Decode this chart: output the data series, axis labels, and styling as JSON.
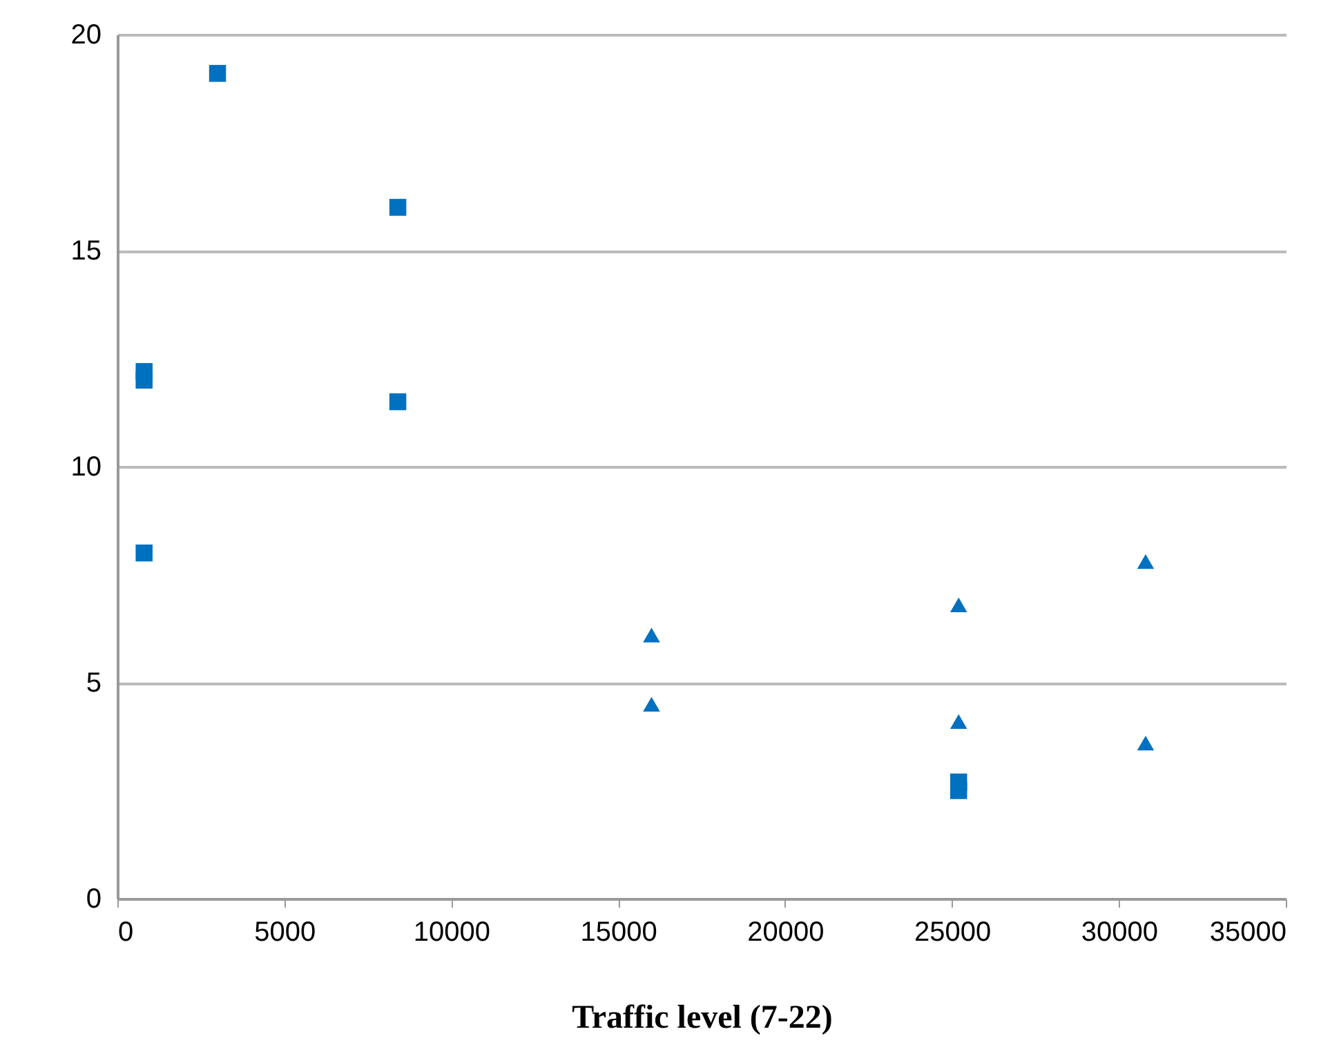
{
  "chart_data": {
    "type": "scatter",
    "xlabel": "Traffic level (7-22)",
    "xlim": [
      0,
      35000
    ],
    "xticks": [
      0,
      5000,
      10000,
      15000,
      20000,
      25000,
      30000,
      35000
    ],
    "ylim": [
      0,
      20
    ],
    "yticks": [
      0,
      5,
      10,
      15,
      20
    ],
    "grid": "y",
    "legend": false,
    "series": [
      {
        "color": "#0070c0",
        "marker": "square",
        "x": [
          800,
          800,
          800,
          3000,
          8400,
          8400,
          25200,
          25200
        ],
        "values": [
          8,
          12.2,
          12,
          19.1,
          16,
          11.5,
          2.7,
          2.5
        ]
      },
      {
        "color": "#0070c0",
        "marker": "triangle",
        "x": [
          16000,
          16000,
          25200,
          25200,
          30800,
          30800
        ],
        "values": [
          6.1,
          4.5,
          6.8,
          4.1,
          7.8,
          3.6
        ]
      }
    ]
  }
}
